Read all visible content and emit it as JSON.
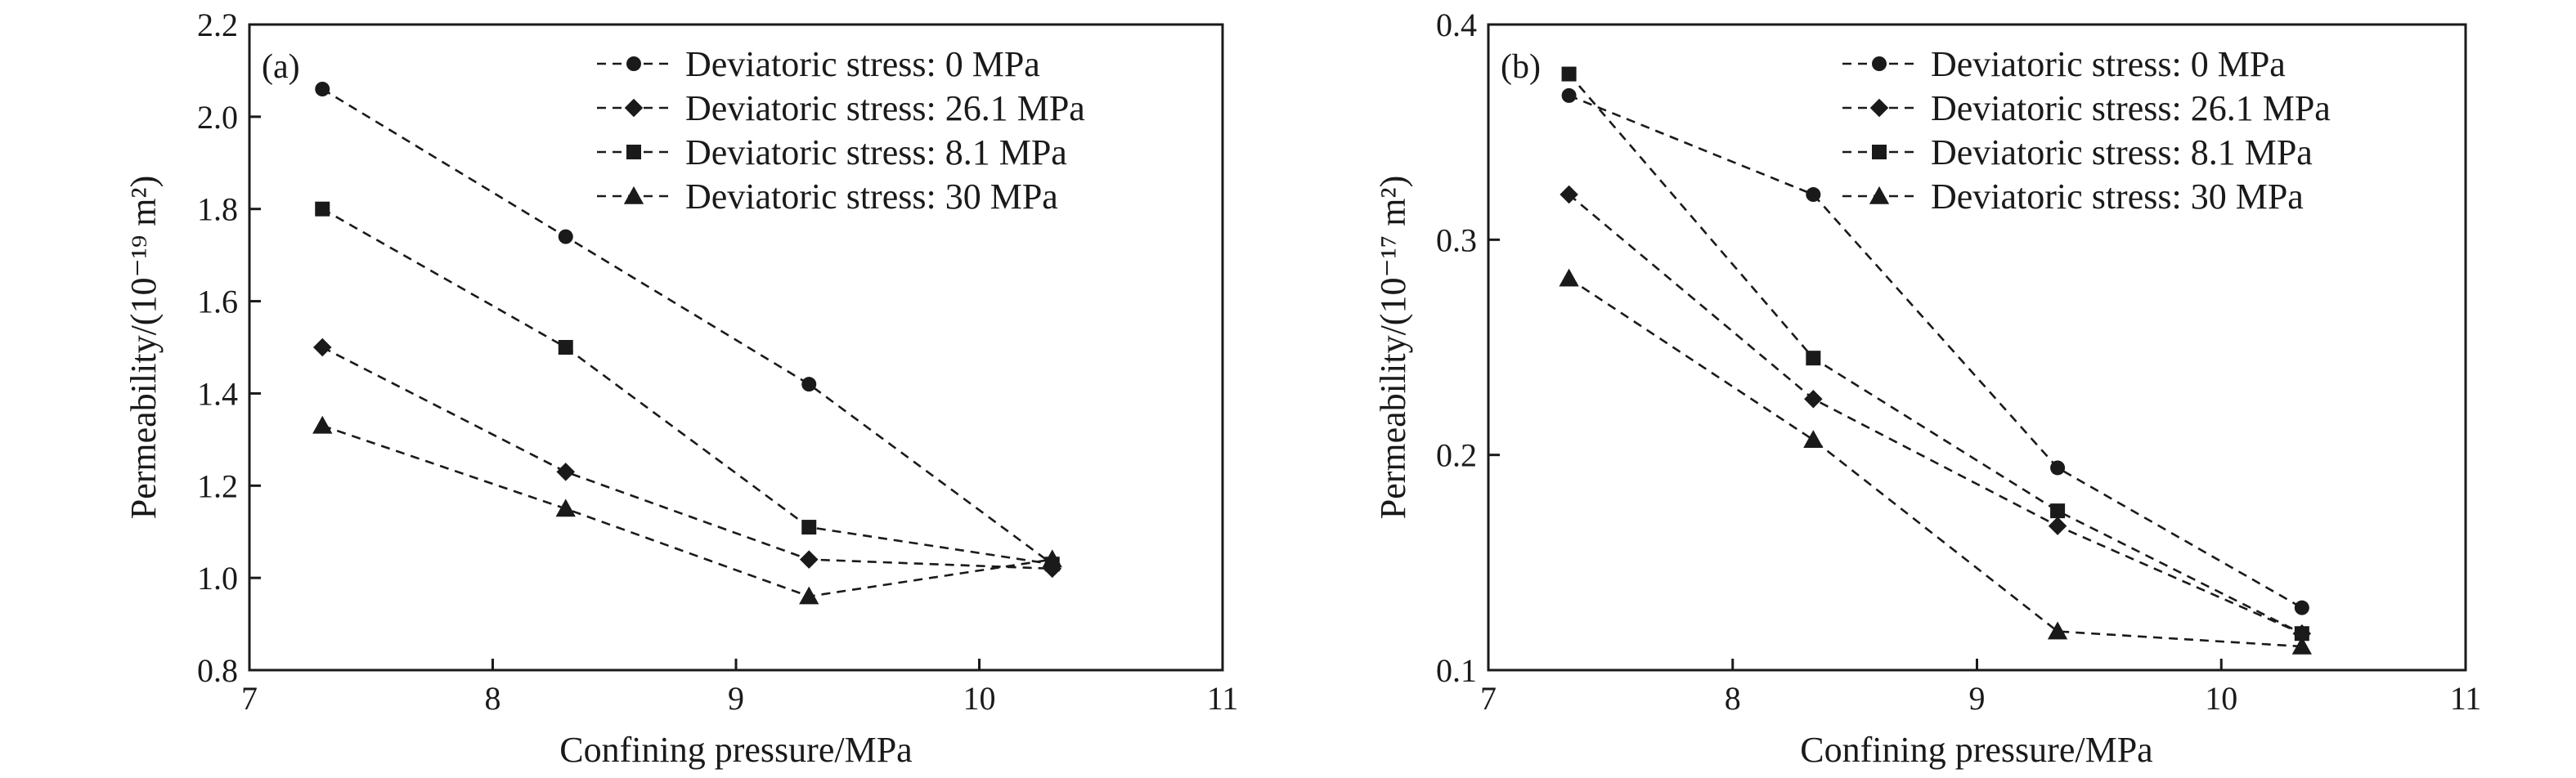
{
  "chart_data": [
    {
      "type": "line",
      "panel_label": "(a)",
      "xlabel": "Confining pressure/MPa",
      "ylabel": "Permeability/(10⁻¹⁹ m²)",
      "xlim": [
        7,
        11
      ],
      "ylim": [
        0.8,
        2.2
      ],
      "x_ticks": [
        7,
        8,
        9,
        10,
        11
      ],
      "x_tick_labels": [
        "7",
        "8",
        "9",
        "10",
        "11"
      ],
      "y_ticks": [
        0.8,
        1.0,
        1.2,
        1.4,
        1.6,
        1.8,
        2.0,
        2.2
      ],
      "y_tick_labels": [
        "0.8",
        "1.0",
        "1.2",
        "1.4",
        "1.6",
        "1.8",
        "2.0",
        "2.2"
      ],
      "legend_position": "top-right",
      "grid": false,
      "series": [
        {
          "name": "Deviatoric stress: 0 MPa",
          "marker": "circle",
          "x": [
            7.3,
            8.3,
            9.3,
            10.3
          ],
          "y": [
            2.06,
            1.74,
            1.42,
            1.03
          ]
        },
        {
          "name": "Deviatoric stress: 26.1 MPa",
          "marker": "diamond",
          "x": [
            7.3,
            8.3,
            9.3,
            10.3
          ],
          "y": [
            1.5,
            1.23,
            1.04,
            1.02
          ]
        },
        {
          "name": "Deviatoric stress: 8.1 MPa",
          "marker": "square",
          "x": [
            7.3,
            8.3,
            9.3,
            10.3
          ],
          "y": [
            1.8,
            1.5,
            1.11,
            1.03
          ]
        },
        {
          "name": "Deviatoric stress: 30 MPa",
          "marker": "triangle",
          "x": [
            7.3,
            8.3,
            9.3,
            10.3
          ],
          "y": [
            1.33,
            1.15,
            0.96,
            1.04
          ]
        }
      ]
    },
    {
      "type": "line",
      "panel_label": "(b)",
      "xlabel": "Confining pressure/MPa",
      "ylabel": "Permeability/(10⁻¹⁷ m²)",
      "xlim": [
        7,
        11
      ],
      "ylim": [
        0.1,
        0.4
      ],
      "x_ticks": [
        7,
        8,
        9,
        10,
        11
      ],
      "x_tick_labels": [
        "7",
        "8",
        "9",
        "10",
        "11"
      ],
      "y_ticks": [
        0.1,
        0.2,
        0.3,
        0.4
      ],
      "y_tick_labels": [
        "0.1",
        "0.2",
        "0.3",
        "0.4"
      ],
      "legend_position": "top-right",
      "grid": false,
      "series": [
        {
          "name": "Deviatoric stress: 0 MPa",
          "marker": "circle",
          "x": [
            7.33,
            8.33,
            9.33,
            10.33
          ],
          "y": [
            0.367,
            0.321,
            0.194,
            0.129
          ]
        },
        {
          "name": "Deviatoric stress: 26.1 MPa",
          "marker": "diamond",
          "x": [
            7.33,
            8.33,
            9.33,
            10.33
          ],
          "y": [
            0.321,
            0.226,
            0.167,
            0.117
          ]
        },
        {
          "name": "Deviatoric stress: 8.1 MPa",
          "marker": "square",
          "x": [
            7.33,
            8.33,
            9.33,
            10.33
          ],
          "y": [
            0.377,
            0.245,
            0.174,
            0.117
          ]
        },
        {
          "name": "Deviatoric stress: 30 MPa",
          "marker": "triangle",
          "x": [
            7.33,
            8.33,
            9.33,
            10.33
          ],
          "y": [
            0.282,
            0.207,
            0.118,
            0.111
          ]
        }
      ]
    }
  ]
}
